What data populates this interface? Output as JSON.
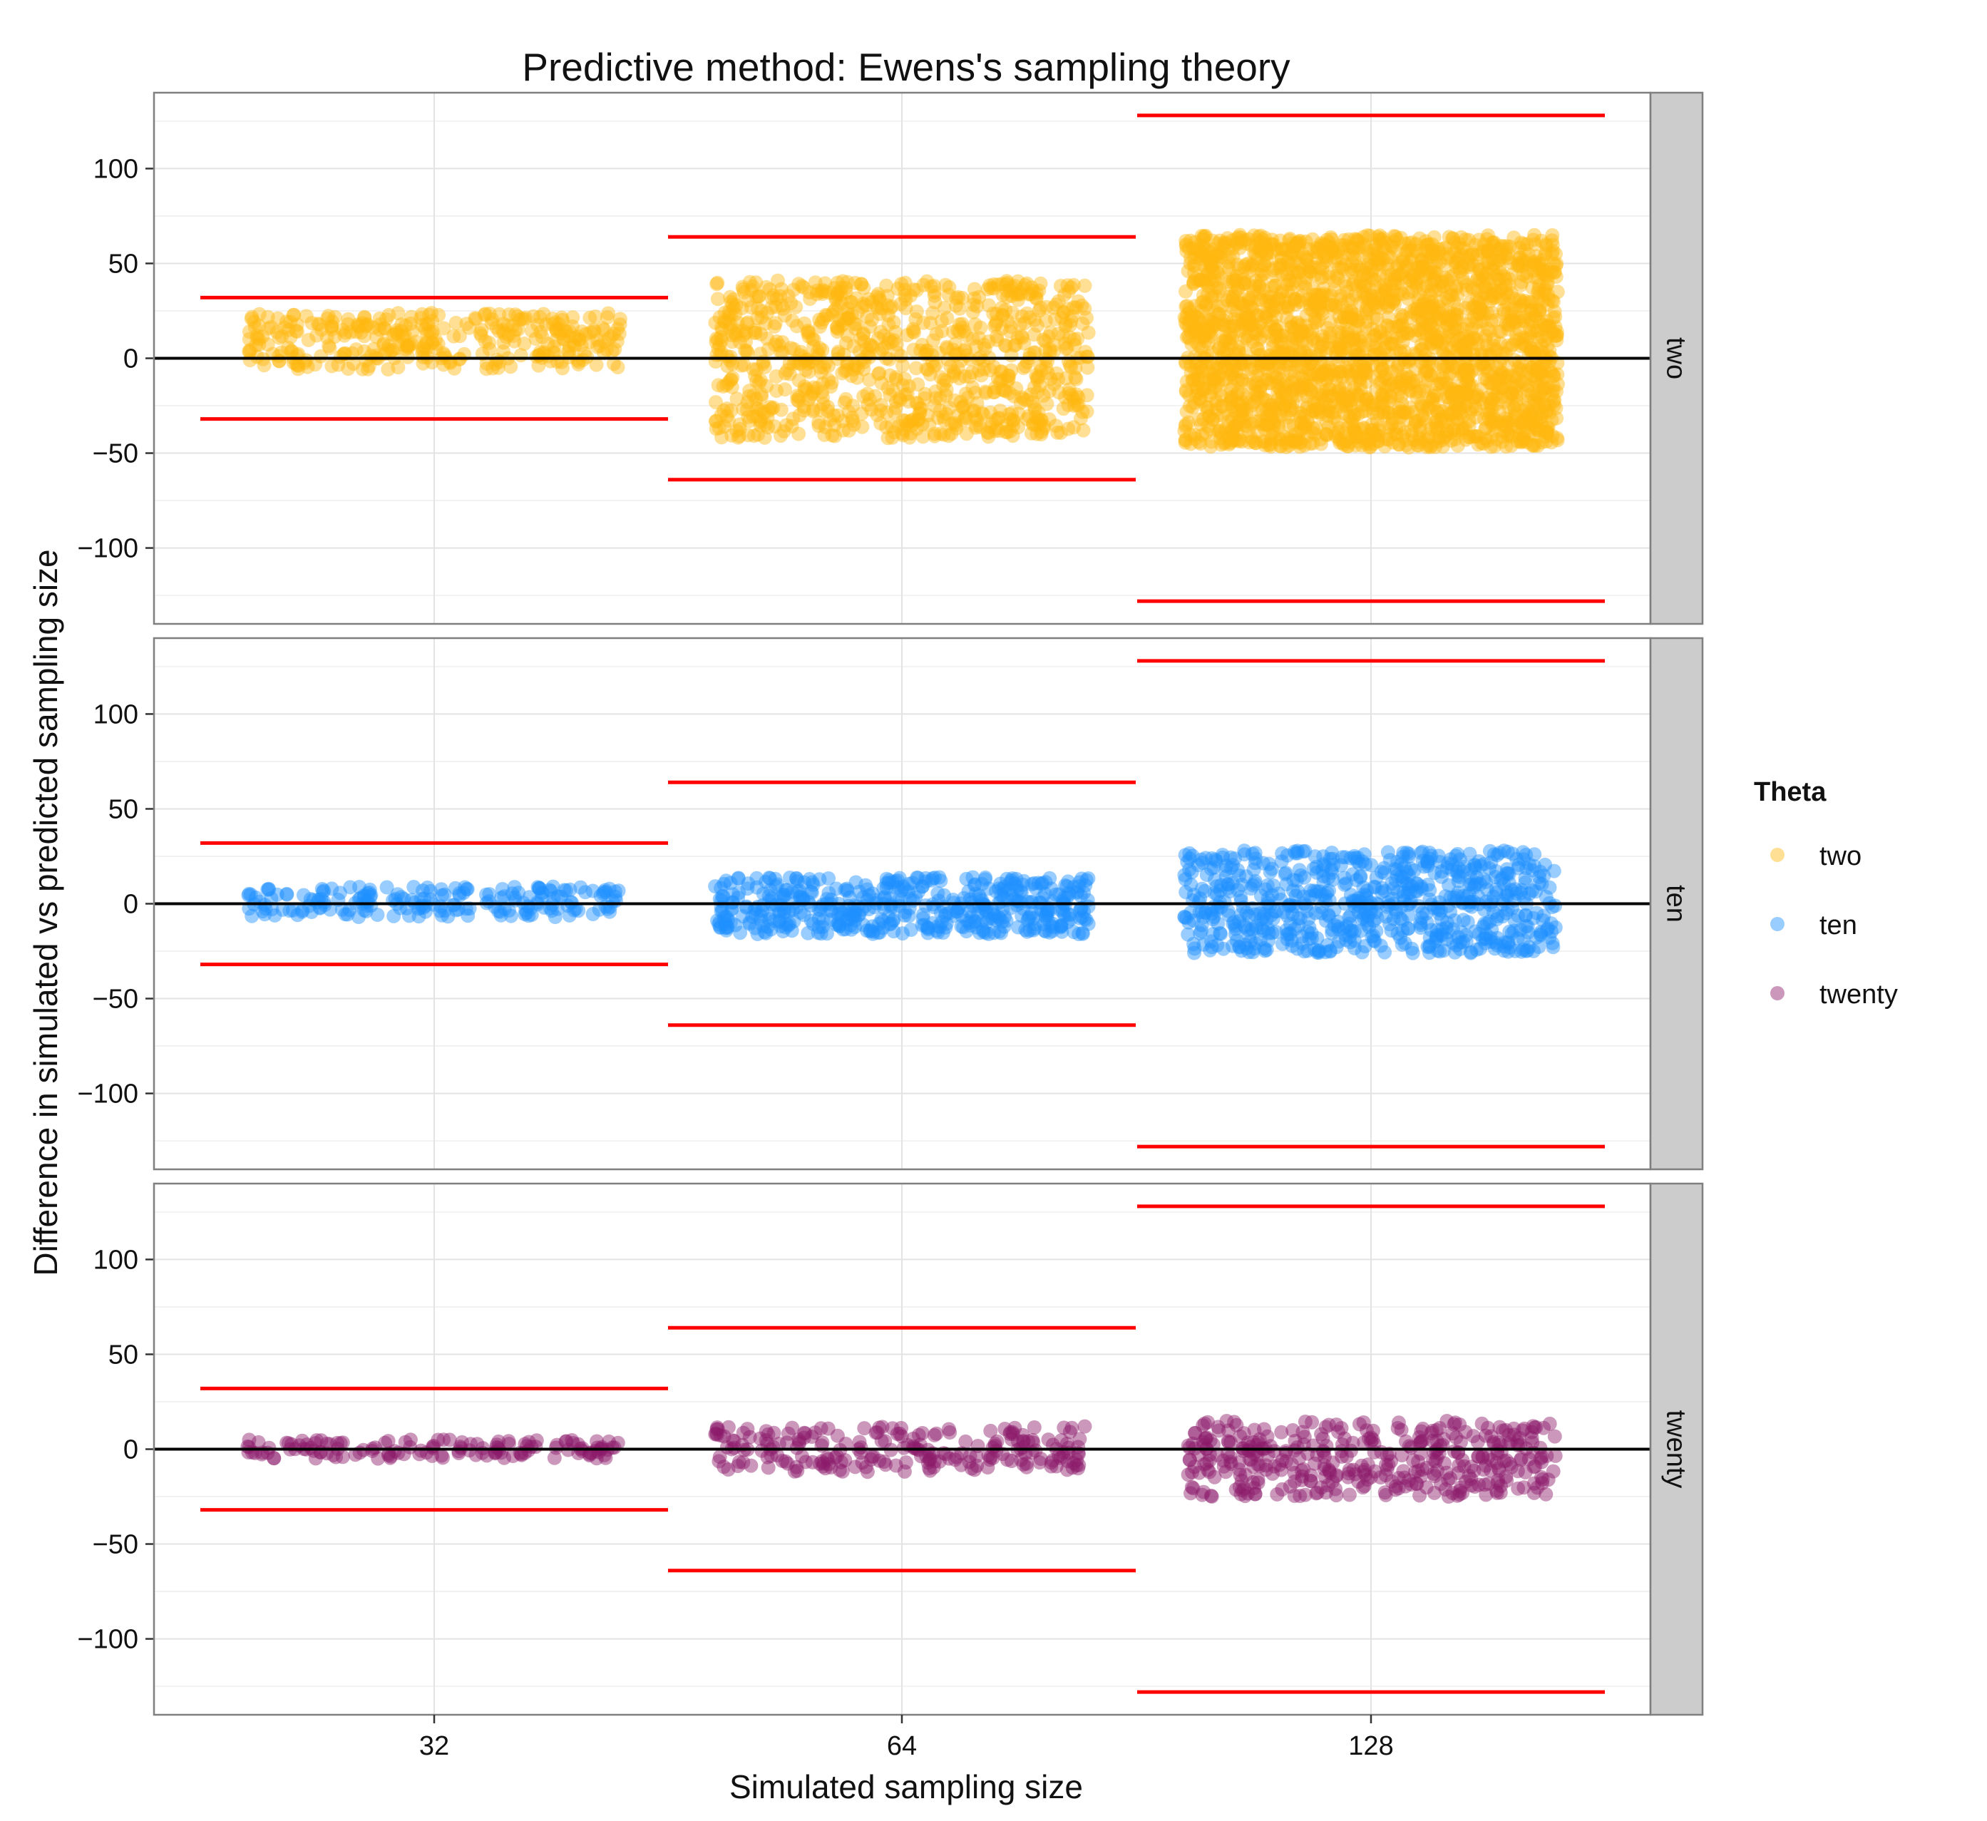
{
  "chart_data": {
    "type": "scatter",
    "title": "Predictive method: Ewens's sampling theory",
    "xlabel": "Simulated sampling size",
    "ylabel": "Difference in simulated vs predicted sampling size",
    "categories": [
      "32",
      "64",
      "128"
    ],
    "ylim": [
      -140,
      140
    ],
    "yticks": [
      -100,
      -50,
      0,
      50,
      100
    ],
    "grid": true,
    "legend": {
      "title": "Theta",
      "position": "right",
      "entries": [
        "two",
        "ten",
        "twenty"
      ]
    },
    "panels": [
      {
        "label": "two",
        "color": "#FFB90F",
        "series": [
          {
            "category": "32",
            "y_min": -6,
            "y_max": 24,
            "n_points": 350
          },
          {
            "category": "64",
            "y_min": -42,
            "y_max": 41,
            "n_points": 900
          },
          {
            "category": "128",
            "y_min": -47,
            "y_max": 65,
            "n_points": 2500
          }
        ]
      },
      {
        "label": "ten",
        "color": "#1E90FF",
        "series": [
          {
            "category": "32",
            "y_min": -7,
            "y_max": 9,
            "n_points": 200
          },
          {
            "category": "64",
            "y_min": -16,
            "y_max": 14,
            "n_points": 500
          },
          {
            "category": "128",
            "y_min": -26,
            "y_max": 28,
            "n_points": 700
          }
        ]
      },
      {
        "label": "twenty",
        "color": "#8B1A6B",
        "series": [
          {
            "category": "32",
            "y_min": -5,
            "y_max": 5,
            "n_points": 140
          },
          {
            "category": "64",
            "y_min": -12,
            "y_max": 12,
            "n_points": 230
          },
          {
            "category": "128",
            "y_min": -25,
            "y_max": 15,
            "n_points": 400
          }
        ]
      }
    ],
    "reference_lines": [
      {
        "category": "32",
        "upper": 32,
        "lower": -32,
        "color": "#FF0000"
      },
      {
        "category": "64",
        "upper": 64,
        "lower": -64,
        "color": "#FF0000"
      },
      {
        "category": "128",
        "upper": 128,
        "lower": -128,
        "color": "#FF0000"
      }
    ],
    "zero_line": {
      "y": 0,
      "color": "#000000"
    }
  }
}
